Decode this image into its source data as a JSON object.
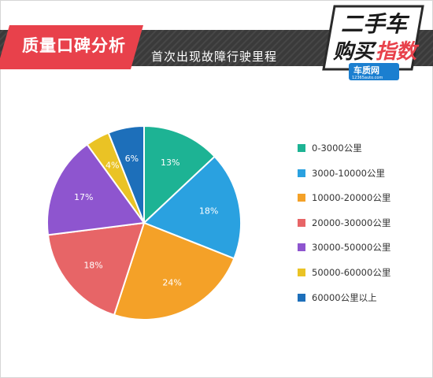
{
  "header": {
    "badge": "质量口碑分析",
    "subtitle": "首次出现故障行驶里程"
  },
  "logo": {
    "line1": "二手车",
    "line2a": "购买",
    "line2b": "指数",
    "brand": "车质网",
    "url": "12365auto.com"
  },
  "colors": {
    "header_bar": "#3d3d3d",
    "badge": "#e8414b",
    "accent_red": "#e8414b"
  },
  "chart_data": {
    "type": "pie",
    "title": "首次出现故障行驶里程",
    "legend_position": "right",
    "slices": [
      {
        "label": "0-3000公里",
        "value": 13,
        "display": "13%",
        "color": "#1db394"
      },
      {
        "label": "3000-10000公里",
        "value": 18,
        "display": "18%",
        "color": "#2aa1e0"
      },
      {
        "label": "10000-20000公里",
        "value": 24,
        "display": "24%",
        "color": "#f4a128"
      },
      {
        "label": "20000-30000公里",
        "value": 18,
        "display": "18%",
        "color": "#e76567"
      },
      {
        "label": "30000-50000公里",
        "value": 17,
        "display": "17%",
        "color": "#8e55cf"
      },
      {
        "label": "50000-60000公里",
        "value": 4,
        "display": "4%",
        "color": "#eac325"
      },
      {
        "label": "60000公里以上",
        "value": 6,
        "display": "6%",
        "color": "#1d6fba"
      }
    ]
  }
}
